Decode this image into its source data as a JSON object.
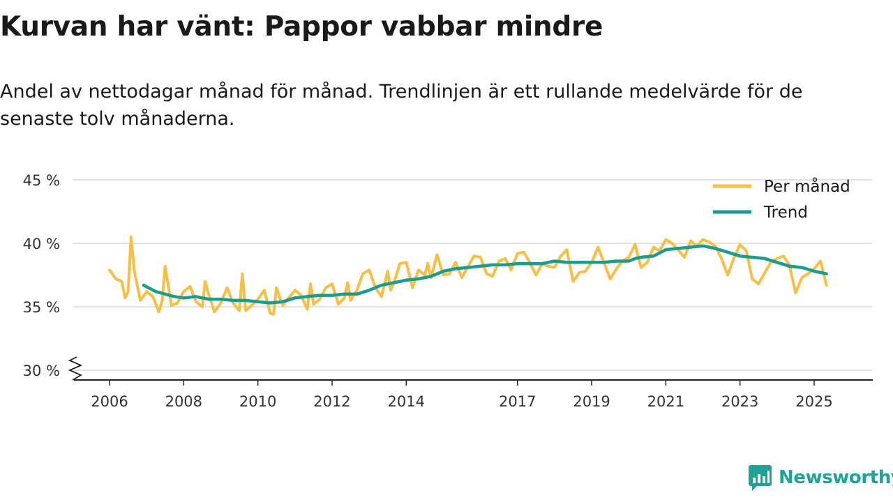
{
  "title": "Kurvan har vänt: Pappor vabbar mindre",
  "subtitle": "Andel av nettodagar månad för månad. Trendlinjen är ett rullande medelvärde för de senaste tolv månaderna.",
  "brand": "Newsworthy",
  "colors": {
    "monthly": "#f7bf45",
    "trend": "#1a9c8f",
    "grid": "#d9d9d9",
    "axis": "#222222",
    "brand": "#1fa396"
  },
  "chart_data": {
    "type": "line",
    "title": "Kurvan har vänt: Pappor vabbar mindre",
    "xlabel": "",
    "ylabel": "",
    "xlim": [
      2006.0,
      2025.583
    ],
    "ylim": [
      30,
      45
    ],
    "y_ticks": [
      30,
      35,
      40,
      45
    ],
    "y_tick_labels": [
      "30 %",
      "35 %",
      "40 %",
      "45 %"
    ],
    "x_ticks": [
      2006,
      2008,
      2010,
      2012,
      2014,
      2017,
      2019,
      2021,
      2023,
      2025
    ],
    "x_tick_labels": [
      "2006",
      "2008",
      "2010",
      "2012",
      "2014",
      "2017",
      "2019",
      "2021",
      "2023",
      "2025"
    ],
    "axis_break": "y-axis below 30 %",
    "legend_position": "top-right",
    "series": [
      {
        "name": "Per månad",
        "x": [
          2006.0,
          2006.17,
          2006.33,
          2006.42,
          2006.5,
          2006.58,
          2006.67,
          2006.83,
          2007.0,
          2007.17,
          2007.33,
          2007.42,
          2007.5,
          2007.67,
          2007.83,
          2008.0,
          2008.17,
          2008.33,
          2008.5,
          2008.58,
          2008.67,
          2008.83,
          2009.0,
          2009.17,
          2009.33,
          2009.5,
          2009.58,
          2009.67,
          2009.83,
          2010.0,
          2010.17,
          2010.33,
          2010.42,
          2010.5,
          2010.58,
          2010.67,
          2010.83,
          2011.0,
          2011.17,
          2011.33,
          2011.42,
          2011.5,
          2011.67,
          2011.83,
          2012.0,
          2012.17,
          2012.33,
          2012.42,
          2012.5,
          2012.67,
          2012.83,
          2013.0,
          2013.17,
          2013.33,
          2013.5,
          2013.58,
          2013.67,
          2013.83,
          2014.0,
          2014.17,
          2014.33,
          2014.5,
          2014.58,
          2014.67,
          2014.83,
          2015.0,
          2015.17,
          2015.33,
          2015.5,
          2015.67,
          2015.83,
          2016.0,
          2016.17,
          2016.33,
          2016.5,
          2016.67,
          2016.83,
          2017.0,
          2017.17,
          2017.33,
          2017.5,
          2017.67,
          2017.83,
          2018.0,
          2018.17,
          2018.33,
          2018.5,
          2018.67,
          2018.83,
          2019.0,
          2019.17,
          2019.33,
          2019.5,
          2019.67,
          2019.83,
          2020.0,
          2020.17,
          2020.33,
          2020.5,
          2020.67,
          2020.83,
          2021.0,
          2021.17,
          2021.33,
          2021.5,
          2021.67,
          2021.83,
          2022.0,
          2022.17,
          2022.33,
          2022.5,
          2022.67,
          2022.83,
          2023.0,
          2023.17,
          2023.33,
          2023.5,
          2023.67,
          2023.83,
          2024.0,
          2024.17,
          2024.33,
          2024.5,
          2024.67,
          2024.83,
          2025.0,
          2025.17,
          2025.33
        ],
        "values": [
          37.9,
          37.2,
          37.0,
          35.7,
          36.2,
          40.5,
          37.8,
          35.5,
          36.2,
          35.8,
          34.6,
          35.5,
          38.2,
          35.1,
          35.3,
          36.2,
          36.6,
          35.4,
          35.0,
          37.0,
          36.0,
          34.6,
          35.3,
          36.5,
          35.3,
          34.7,
          37.6,
          34.7,
          35.1,
          35.6,
          36.3,
          34.5,
          34.4,
          36.5,
          35.8,
          35.1,
          35.7,
          36.3,
          35.9,
          34.8,
          36.8,
          35.2,
          35.6,
          36.5,
          36.8,
          35.2,
          35.7,
          36.9,
          35.5,
          36.3,
          37.6,
          37.9,
          36.5,
          35.8,
          37.8,
          36.3,
          36.9,
          38.4,
          38.5,
          36.5,
          37.9,
          37.5,
          38.4,
          37.3,
          39.1,
          37.5,
          37.6,
          38.5,
          37.3,
          38.2,
          39.0,
          38.9,
          37.6,
          37.4,
          38.6,
          38.8,
          37.9,
          39.2,
          39.3,
          38.5,
          37.5,
          38.4,
          38.2,
          38.1,
          39.0,
          39.5,
          37.0,
          37.7,
          37.8,
          38.5,
          39.7,
          38.5,
          37.2,
          38.0,
          38.6,
          38.9,
          39.9,
          38.1,
          38.5,
          39.7,
          39.4,
          40.3,
          40.0,
          39.5,
          38.9,
          40.2,
          39.8,
          40.3,
          40.1,
          39.8,
          38.8,
          37.5,
          38.8,
          39.9,
          39.4,
          37.2,
          36.8,
          37.7,
          38.5,
          38.8,
          39.0,
          38.3,
          36.1,
          37.3,
          37.6,
          38.0,
          38.6,
          36.7
        ]
      },
      {
        "name": "Trend",
        "x": [
          2006.92,
          2007.25,
          2007.5,
          2007.75,
          2008.0,
          2008.33,
          2008.67,
          2009.0,
          2009.33,
          2009.67,
          2010.0,
          2010.33,
          2010.67,
          2011.0,
          2011.33,
          2011.67,
          2012.0,
          2012.33,
          2012.67,
          2013.0,
          2013.33,
          2013.67,
          2014.0,
          2014.33,
          2014.67,
          2015.0,
          2015.33,
          2015.67,
          2016.0,
          2016.33,
          2016.67,
          2017.0,
          2017.33,
          2017.67,
          2018.0,
          2018.33,
          2018.67,
          2019.0,
          2019.33,
          2019.67,
          2020.0,
          2020.17,
          2020.33,
          2020.67,
          2021.0,
          2021.33,
          2021.67,
          2022.0,
          2022.33,
          2022.67,
          2023.0,
          2023.33,
          2023.67,
          2024.0,
          2024.33,
          2024.67,
          2025.0,
          2025.33
        ],
        "values": [
          36.7,
          36.2,
          36.0,
          35.8,
          35.7,
          35.8,
          35.6,
          35.6,
          35.5,
          35.5,
          35.4,
          35.3,
          35.4,
          35.7,
          35.8,
          35.9,
          35.9,
          36.0,
          36.0,
          36.3,
          36.7,
          36.9,
          37.1,
          37.2,
          37.4,
          37.8,
          38.0,
          38.1,
          38.2,
          38.3,
          38.3,
          38.4,
          38.4,
          38.4,
          38.6,
          38.5,
          38.5,
          38.5,
          38.5,
          38.6,
          38.6,
          38.8,
          38.9,
          39.0,
          39.5,
          39.6,
          39.7,
          39.8,
          39.6,
          39.3,
          39.0,
          38.9,
          38.8,
          38.5,
          38.2,
          38.1,
          37.8,
          37.6
        ]
      }
    ]
  }
}
